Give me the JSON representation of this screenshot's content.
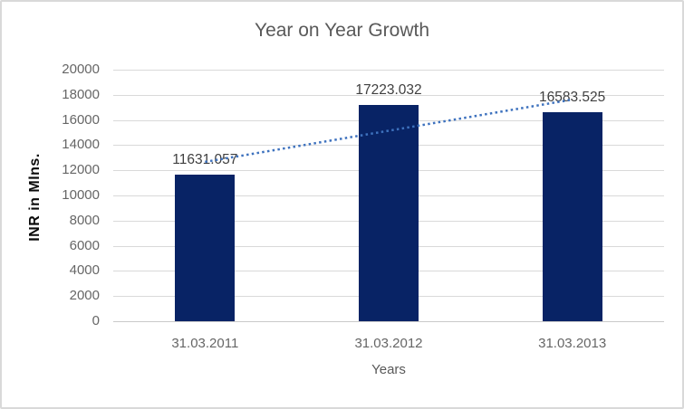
{
  "chart_data": {
    "type": "bar",
    "title": "Year on Year Growth",
    "categories": [
      "31.03.2011",
      "31.03.2012",
      "31.03.2013"
    ],
    "values": [
      11631.057,
      17223.032,
      16583.525
    ],
    "data_labels": [
      "11631.057",
      "17223.032",
      "16583.525"
    ],
    "xlabel": "Years",
    "ylabel": "INR in Mlns.",
    "ylim": [
      0,
      20000
    ],
    "yticks": [
      0,
      2000,
      4000,
      6000,
      8000,
      10000,
      12000,
      14000,
      16000,
      18000,
      20000
    ],
    "grid": true,
    "legend": "none",
    "trendline": {
      "type": "linear",
      "style": "dotted"
    },
    "colors": {
      "bar": "#082365",
      "trendline": "#3E72BE",
      "gridline": "#D9D9D9",
      "axis_line": "#C9C9C9",
      "title_text": "#595959",
      "axis_text": "#666666",
      "data_label_text": "#3F3F3F",
      "background": "#FFFFFF",
      "border": "#D9D9D9"
    }
  }
}
